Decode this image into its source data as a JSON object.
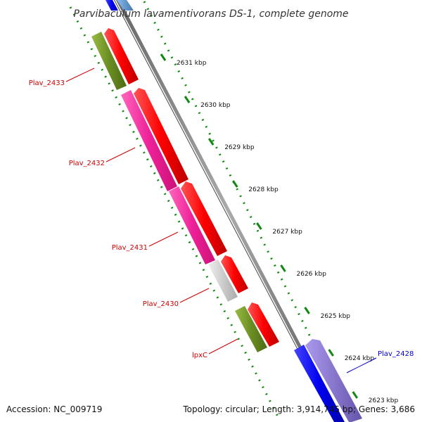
{
  "title": "Parvibaculum lavamentivorans DS-1, complete genome",
  "footer": {
    "accession": "Accession: NC_009719",
    "summary": "Topology: circular; Length: 3,914,745 bp; Genes: 3,686"
  },
  "chart_data": {
    "type": "genome_map",
    "ticks": [
      {
        "label": "2631 kbp",
        "kbp": 2631
      },
      {
        "label": "2630 kbp",
        "kbp": 2630
      },
      {
        "label": "2629 kbp",
        "kbp": 2629
      },
      {
        "label": "2628 kbp",
        "kbp": 2628
      },
      {
        "label": "2627 kbp",
        "kbp": 2627
      },
      {
        "label": "2626 kbp",
        "kbp": 2626
      },
      {
        "label": "2625 kbp",
        "kbp": 2625
      },
      {
        "label": "2624 kbp",
        "kbp": 2624
      },
      {
        "label": "2623 kbp",
        "kbp": 2623
      }
    ],
    "gene_labels": [
      {
        "name": "Plav_2433",
        "color": "#cc0000"
      },
      {
        "name": "Plav_2432",
        "color": "#cc0000"
      },
      {
        "name": "Plav_2431",
        "color": "#cc0000"
      },
      {
        "name": "Plav_2430",
        "color": "#cc0000"
      },
      {
        "name": "lpxC",
        "color": "#cc0000"
      },
      {
        "name": "Plav_2428",
        "color": "#0000cc"
      }
    ],
    "colors": {
      "backbone": "#888888",
      "cds_forward": "#ff0000",
      "cds_gray": "#c8c8c8",
      "cds_magenta": "#ee2299",
      "cds_olive": "#6b8e23",
      "cds_blue": "#0000ee",
      "cds_lavender": "#8877cc",
      "cds_steelblue": "#6699cc",
      "gc_ring": "#118811"
    }
  }
}
